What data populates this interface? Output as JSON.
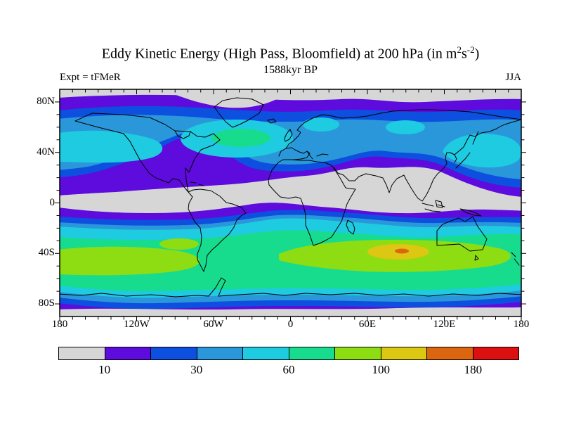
{
  "title": {
    "prefix": "Eddy Kinetic Energy (High Pass, Bloomfield) at 200 hPa (in m",
    "sup1": "2",
    "mid": "s",
    "sup2": "-2",
    "suffix": ")"
  },
  "subtitle": "1588kyr BP",
  "header": {
    "experiment": "Expt = tFMeR",
    "season": "JJA"
  },
  "axes": {
    "y_tick_labels": [
      "80N",
      "40N",
      "0",
      "40S",
      "80S"
    ],
    "x_tick_labels": [
      "180",
      "120W",
      "60W",
      "0",
      "60E",
      "120E",
      "180"
    ]
  },
  "colorbar": {
    "colors": [
      "#d6d6d6",
      "#5e0bdd",
      "#0d4fdf",
      "#2a97da",
      "#1ecbe0",
      "#17dc8e",
      "#8edc12",
      "#dcc712",
      "#dc660f",
      "#dc1010"
    ],
    "labels": [
      "10",
      "30",
      "60",
      "100",
      "180"
    ],
    "label_boundary_indices": [
      1,
      3,
      5,
      7,
      9
    ]
  },
  "chart_data": {
    "type": "heatmap",
    "subtype": "filled-contour-latlon-map",
    "title": "Eddy Kinetic Energy (High Pass, Bloomfield) at 200 hPa (in m2 s-2)",
    "experiment": "tFMeR",
    "time": "1588kyr BP",
    "season": "JJA",
    "variable": "Eddy Kinetic Energy (high-pass filtered, Bloomfield)",
    "pressure_level": "200 hPa",
    "units": "m2 s-2",
    "projection": "equirectangular",
    "lon_range": [
      -180,
      180
    ],
    "lat_range": [
      -90,
      90
    ],
    "x_major_ticks_deg": [
      -180,
      -120,
      -60,
      0,
      60,
      120,
      180
    ],
    "y_major_ticks_deg": [
      80,
      40,
      0,
      -40,
      -80
    ],
    "minor_tick_interval_deg": 10,
    "n_color_bins": 10,
    "labeled_contour_levels": [
      10,
      30,
      60,
      100,
      180
    ],
    "legend_position": "bottom horizontal colorbar",
    "grid": false,
    "zonal_structure": [
      {
        "lat_band": "90N-82N",
        "value_bin": "<10 (gray)"
      },
      {
        "lat_band": "82N-70N",
        "value_bin": "10-20 (purple)"
      },
      {
        "lat_band": "70N-50N",
        "value_bin": "20-60 (blue to cyan storm track)"
      },
      {
        "lat_band": "50N-42N NW Atlantic near 75W-55W",
        "value_bin": "60-100 local max (green)"
      },
      {
        "lat_band": "40N-25N",
        "value_bin": "10-20 (purple)"
      },
      {
        "lat_band": "25N-8S",
        "value_bin": "<10 (gray subtropical-tropical minimum)"
      },
      {
        "lat_band": "8S-20S",
        "value_bin": "10-30"
      },
      {
        "lat_band": "20S-30S",
        "value_bin": "30-60"
      },
      {
        "lat_band": "30S-60S",
        "value_bin": "60-100 circumpolar storm track"
      },
      {
        "lat_band": "35S-50S S Pacific and S Indian Ocean",
        "value_bin": "100+ (yellow-green/gold), small core near 85E approaching 180 (orange)"
      },
      {
        "lat_band": "60S-75S",
        "value_bin": "30-60 decreasing"
      },
      {
        "lat_band": "75S-83S",
        "value_bin": "10-30"
      },
      {
        "lat_band": "83S-90S",
        "value_bin": "<10 (gray)"
      }
    ],
    "local_maxima": [
      {
        "region": "Bering Sea / Alaska ~55-65N",
        "value_bin": "45-60 (cyan)"
      },
      {
        "region": "NW Atlantic off Newfoundland ~45-50N",
        "value_bin": "60-100 (green)"
      },
      {
        "region": "Scandinavia / Barents ~65N",
        "value_bin": "45-60 (cyan)"
      },
      {
        "region": "Central Siberia ~60N",
        "value_bin": "45-60 (cyan)"
      },
      {
        "region": "NW Pacific / Japan ~35-55N",
        "value_bin": "45-60 (cyan)"
      },
      {
        "region": "S Indian Ocean ~85E 35S",
        "value_bin": "140-180 (orange core in gold patch)"
      }
    ]
  }
}
